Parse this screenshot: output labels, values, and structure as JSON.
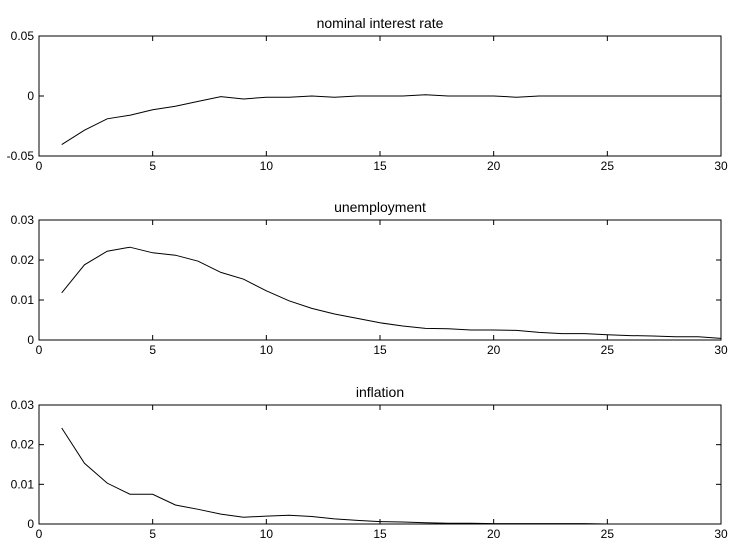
{
  "colors": {
    "line": "#000000",
    "axes": "#000000",
    "background": "#ffffff"
  },
  "chart_data": [
    {
      "type": "line",
      "title": "nominal interest rate",
      "xlabel": "",
      "ylabel": "",
      "xlim": [
        0,
        30
      ],
      "ylim": [
        -0.05,
        0.05
      ],
      "xticks": [
        0,
        5,
        10,
        15,
        20,
        25,
        30
      ],
      "xtick_labels": [
        "0",
        "5",
        "10",
        "15",
        "20",
        "25",
        "30"
      ],
      "yticks": [
        -0.05,
        0,
        0.05
      ],
      "ytick_labels": [
        "-0.05",
        "0",
        "0.05"
      ],
      "grid": false,
      "series": [
        {
          "x": [
            1,
            2,
            3,
            4,
            5,
            6,
            7,
            8,
            9,
            10,
            11,
            12,
            13,
            14,
            15,
            16,
            17,
            18,
            19,
            20,
            21,
            22,
            23,
            24,
            25,
            26,
            27,
            28,
            29,
            30
          ],
          "values": [
            -0.0405,
            -0.0285,
            -0.019,
            -0.016,
            -0.0115,
            -0.0085,
            -0.0045,
            -0.0005,
            -0.0025,
            -0.001,
            -0.001,
            0.0,
            -0.001,
            0.0,
            0.0,
            0.0,
            0.001,
            0.0,
            0.0,
            0.0,
            -0.001,
            0.0,
            0.0,
            0.0,
            0.0,
            0.0,
            0.0,
            0.0,
            0.0,
            0.0
          ]
        }
      ]
    },
    {
      "type": "line",
      "title": "unemployment",
      "xlabel": "",
      "ylabel": "",
      "xlim": [
        0,
        30
      ],
      "ylim": [
        0,
        0.03
      ],
      "xticks": [
        0,
        5,
        10,
        15,
        20,
        25,
        30
      ],
      "xtick_labels": [
        "0",
        "5",
        "10",
        "15",
        "20",
        "25",
        "30"
      ],
      "yticks": [
        0,
        0.01,
        0.02,
        0.03
      ],
      "ytick_labels": [
        "0",
        "0.01",
        "0.02",
        "0.03"
      ],
      "grid": false,
      "series": [
        {
          "x": [
            1,
            2,
            3,
            4,
            5,
            6,
            7,
            8,
            9,
            10,
            11,
            12,
            13,
            14,
            15,
            16,
            17,
            18,
            19,
            20,
            21,
            22,
            23,
            24,
            25,
            26,
            27,
            28,
            29,
            30
          ],
          "values": [
            0.0118,
            0.0188,
            0.0222,
            0.0232,
            0.0218,
            0.0212,
            0.0197,
            0.0169,
            0.0152,
            0.0123,
            0.0098,
            0.0079,
            0.0065,
            0.0054,
            0.0043,
            0.0035,
            0.0029,
            0.0028,
            0.0025,
            0.0025,
            0.0024,
            0.0019,
            0.0016,
            0.0016,
            0.0013,
            0.0011,
            0.001,
            0.0008,
            0.0008,
            0.0004
          ]
        }
      ]
    },
    {
      "type": "line",
      "title": "inflation",
      "xlabel": "",
      "ylabel": "",
      "xlim": [
        0,
        30
      ],
      "ylim": [
        0,
        0.03
      ],
      "xticks": [
        0,
        5,
        10,
        15,
        20,
        25,
        30
      ],
      "xtick_labels": [
        "0",
        "5",
        "10",
        "15",
        "20",
        "25",
        "30"
      ],
      "yticks": [
        0,
        0.01,
        0.02,
        0.03
      ],
      "ytick_labels": [
        "0",
        "0.01",
        "0.02",
        "0.03"
      ],
      "grid": false,
      "series": [
        {
          "x": [
            1,
            2,
            3,
            4,
            5,
            6,
            7,
            8,
            9,
            10,
            11,
            12,
            13,
            14,
            15,
            16,
            17,
            18,
            19,
            20,
            21,
            22,
            23,
            24,
            25,
            26,
            27,
            28,
            29,
            30
          ],
          "values": [
            0.0242,
            0.0153,
            0.0103,
            0.0075,
            0.0075,
            0.0048,
            0.0037,
            0.0025,
            0.0017,
            0.002,
            0.0022,
            0.0019,
            0.0013,
            0.0009,
            0.0006,
            0.0005,
            0.0003,
            0.0002,
            0.0002,
            0.0001,
            0.0001,
            0.0001,
            0.0001,
            0.0001,
            0.0,
            0.0,
            0.0,
            0.0,
            0.0,
            0.0
          ]
        }
      ]
    }
  ]
}
